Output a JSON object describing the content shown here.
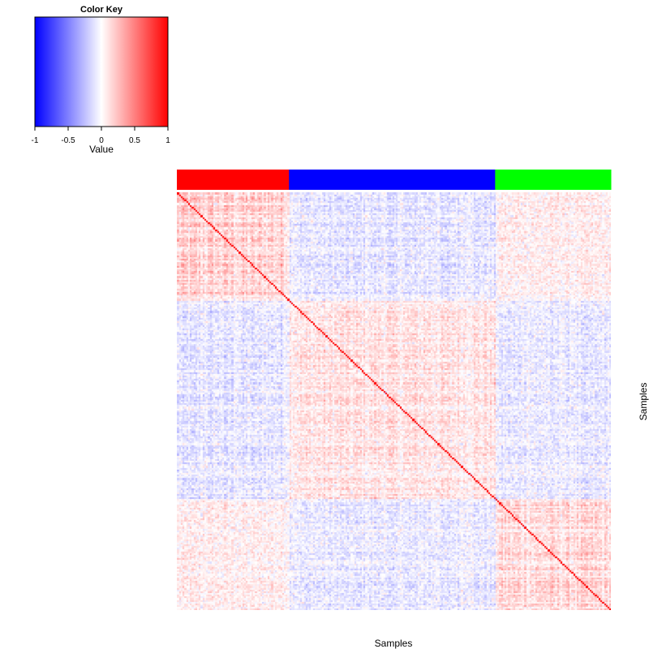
{
  "chart_data": {
    "type": "heatmap",
    "title": "",
    "xlabel": "Samples",
    "ylabel": "Samples",
    "matrix_kind": "sample-sample correlation",
    "n_samples": 240,
    "value_range": [
      -1,
      1
    ],
    "diagonal_value": 1,
    "groups": [
      {
        "color": "#ff0000",
        "count": 62
      },
      {
        "color": "#0000ff",
        "count": 114
      },
      {
        "color": "#00ff00",
        "count": 64
      }
    ],
    "block_mean_correlation": [
      [
        0.22,
        -0.12,
        0.08
      ],
      [
        -0.12,
        0.14,
        -0.1
      ],
      [
        0.08,
        -0.1,
        0.18
      ]
    ],
    "color_key": {
      "title": "Color Key",
      "xlabel": "Value",
      "ticks": [
        "-1",
        "-0.5",
        "0",
        "0.5",
        "1"
      ],
      "tick_values": [
        -1,
        -0.5,
        0,
        0.5,
        1
      ],
      "low_color": "#0000ff",
      "mid_color": "#ffffff",
      "high_color": "#ff0000"
    }
  }
}
